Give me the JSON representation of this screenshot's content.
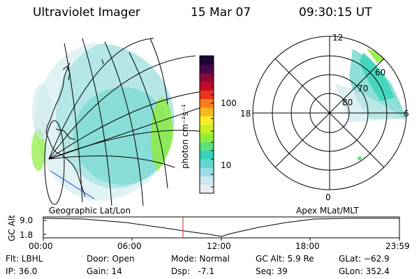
{
  "header": {
    "instrument": "Ultraviolet Imager",
    "date": "15 Mar 07",
    "time": "09:30:15 UT"
  },
  "left_panel": {
    "caption": "Geographic Lat/Lon"
  },
  "colorbar": {
    "unit_label": "photon cm⁻²s⁻¹",
    "ticks": [
      "100",
      "10"
    ],
    "scale": "log",
    "colors": [
      "#e8eef0",
      "#cde8ee",
      "#9fdce4",
      "#5fd6cf",
      "#35d3b9",
      "#5ce07e",
      "#8fec3c",
      "#c8f025",
      "#f7ec2e",
      "#f8b81f",
      "#f87c1c",
      "#e8321c",
      "#c00c28",
      "#8a0a3a",
      "#4a0848",
      "#1a0838"
    ]
  },
  "right_panel": {
    "caption": "Apex MLat/MLT",
    "mlt_labels": {
      "top": "12",
      "left": "18",
      "right": "6",
      "bottom": "0"
    },
    "lat_labels": [
      "60",
      "70",
      "80"
    ]
  },
  "timeline": {
    "y_axis_label": "GC Alt",
    "y_ticks": [
      "9.0",
      "1.8"
    ],
    "x_ticks": [
      "00:00",
      "06:00",
      "12:00",
      "18:00",
      "23:59"
    ],
    "current_time_marker": "09:30"
  },
  "status": {
    "filter": "Flt: LBHL",
    "ip": "IP: 36.0",
    "door": "Door: Open",
    "gain": "Gain: 14",
    "mode": "Mode: Normal",
    "dsp": "Dsp:   -7.1",
    "gc_alt": "GC Alt: 5.9 Re",
    "seq": "Seq: 39",
    "glat": "GLat: −62.9",
    "glon": "GLon: 352.4"
  }
}
